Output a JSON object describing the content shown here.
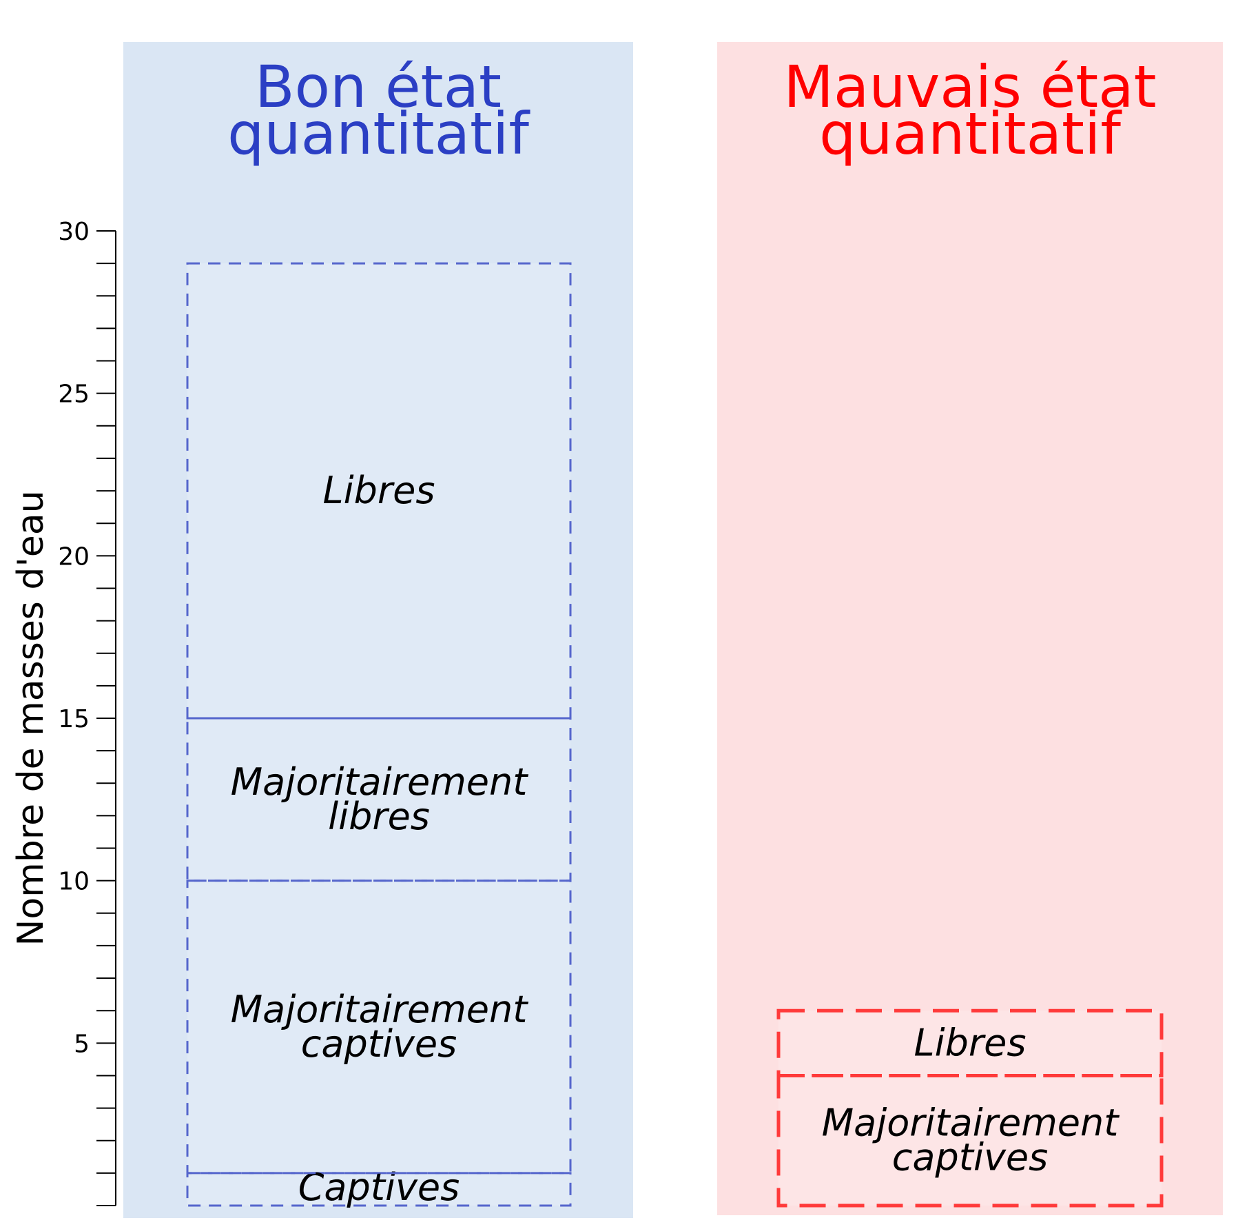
{
  "chart_data": {
    "type": "bar",
    "stacked": true,
    "ylabel": "Nombre de masses d'eau",
    "ylim": [
      0,
      30
    ],
    "yticks_major": [
      5,
      10,
      15,
      20,
      25,
      30
    ],
    "ytick_minor_step": 1,
    "grid": false,
    "categories": [
      {
        "title_lines": [
          "Bon état",
          "quantitatif"
        ],
        "title_color": "#2b3fc4",
        "panel_color": "#dae6f4",
        "box_color": "#5566cc",
        "segments": [
          {
            "label_lines": [
              "Captives"
            ],
            "value": 1
          },
          {
            "label_lines": [
              "Majoritairement",
              "captives"
            ],
            "value": 9
          },
          {
            "label_lines": [
              "Majoritairement",
              "libres"
            ],
            "value": 5
          },
          {
            "label_lines": [
              "Libres"
            ],
            "value": 14
          }
        ]
      },
      {
        "title_lines": [
          "Mauvais état",
          "quantitatif"
        ],
        "title_color": "#ff0000",
        "panel_color": "#fde0e1",
        "box_color": "#ff3a3a",
        "segments": [
          {
            "label_lines": [
              "Majoritairement",
              "captives"
            ],
            "value": 4
          },
          {
            "label_lines": [
              "Libres"
            ],
            "value": 2
          }
        ]
      }
    ]
  }
}
